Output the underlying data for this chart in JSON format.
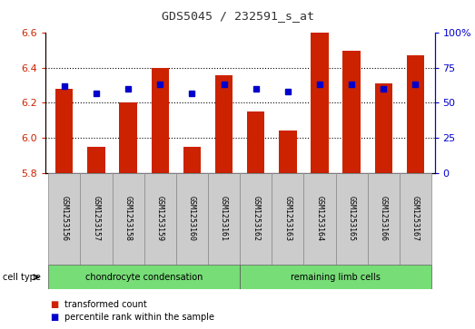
{
  "title": "GDS5045 / 232591_s_at",
  "samples": [
    "GSM1253156",
    "GSM1253157",
    "GSM1253158",
    "GSM1253159",
    "GSM1253160",
    "GSM1253161",
    "GSM1253162",
    "GSM1253163",
    "GSM1253164",
    "GSM1253165",
    "GSM1253166",
    "GSM1253167"
  ],
  "red_values": [
    6.28,
    5.95,
    6.2,
    6.4,
    5.95,
    6.36,
    6.15,
    6.04,
    6.6,
    6.5,
    6.31,
    6.47
  ],
  "blue_values": [
    62,
    57,
    60,
    63,
    57,
    63,
    60,
    58,
    63,
    63,
    60,
    63
  ],
  "left_ylim": [
    5.8,
    6.6
  ],
  "left_yticks": [
    5.8,
    6.0,
    6.2,
    6.4,
    6.6
  ],
  "right_ylim": [
    0,
    100
  ],
  "right_yticks": [
    0,
    25,
    50,
    75,
    100
  ],
  "right_yticklabels": [
    "0",
    "25",
    "50",
    "75",
    "100%"
  ],
  "bar_color": "#cc2200",
  "dot_color": "#0000cc",
  "bar_bottom": 5.8,
  "grid_ticks": [
    6.0,
    6.2,
    6.4
  ],
  "groups": [
    {
      "label": "chondrocyte condensation",
      "start": 0,
      "end": 5,
      "color": "#77dd77"
    },
    {
      "label": "remaining limb cells",
      "start": 6,
      "end": 11,
      "color": "#77dd77"
    }
  ],
  "cell_type_label": "cell type",
  "legend_items": [
    {
      "color": "#cc2200",
      "label": "transformed count"
    },
    {
      "color": "#0000cc",
      "label": "percentile rank within the sample"
    }
  ],
  "title_color": "#333333",
  "left_axis_color": "#cc2200",
  "right_axis_color": "#0000cc",
  "tick_bg_color": "#cccccc",
  "figwidth": 5.23,
  "figheight": 3.63
}
